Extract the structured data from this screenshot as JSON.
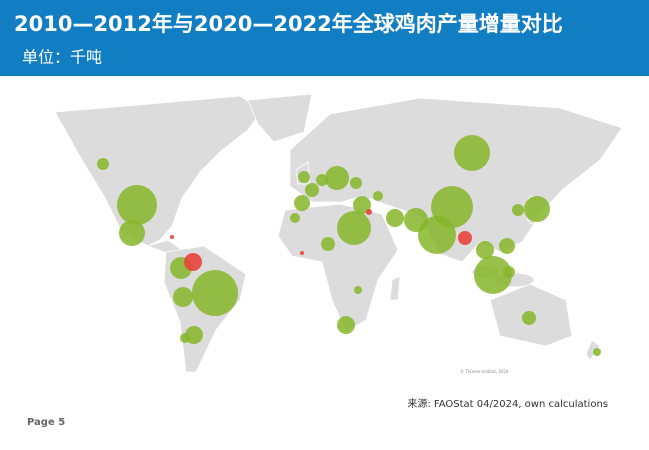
{
  "header": {
    "title": "2010—2012年与2020—2022年全球鸡肉产量增量对比",
    "subtitle": "单位：千吨"
  },
  "map": {
    "credit": "© Thünen-Institut, 2024"
  },
  "footer": {
    "source": "来源: FAOStat 04/2024, own calculations",
    "page": "Page 5"
  }
}
